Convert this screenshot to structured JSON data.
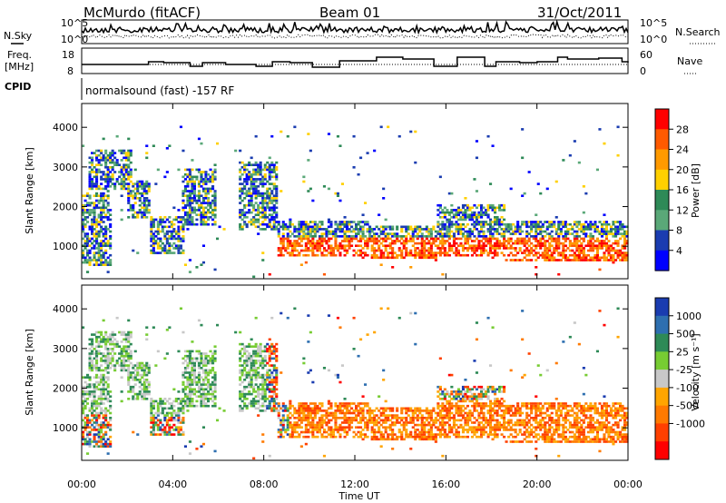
{
  "header": {
    "station": "McMurdo (fitACF)",
    "beam": "Beam 01",
    "date": "31/Oct/2011"
  },
  "aux_panels": {
    "nsky_label": "N.Sky",
    "nsearch_label": "N.Search",
    "noise_ticks_left": [
      "10^5",
      "10^0"
    ],
    "noise_ticks_right": [
      "10^5",
      "10^0"
    ],
    "freq_label_line1": "Freq.",
    "freq_label_line2": "[MHz]",
    "freq_ticks": [
      "18",
      "8"
    ],
    "nave_label": "Nave",
    "nave_ticks": [
      "60",
      "0"
    ],
    "cpid_label": "CPID",
    "cpid_text": "normalsound (fast) -157 RF"
  },
  "colorbars": {
    "power": {
      "label": "Power [dB]",
      "ticks": [
        "28",
        "24",
        "20",
        "16",
        "12",
        "8",
        "4"
      ],
      "colors": [
        "#ff0000",
        "#ff5a00",
        "#ff9a00",
        "#ffd000",
        "#2e8a57",
        "#5aa878",
        "#1a3cb0",
        "#0000ff"
      ]
    },
    "velocity": {
      "label": "Velocity [m s⁻¹]",
      "ticks": [
        "1000",
        "500",
        "25",
        "-25",
        "-100",
        "-500",
        "-1000"
      ],
      "colors": [
        "#1a3cb0",
        "#2e6fb0",
        "#2e8a57",
        "#77cc33",
        "#c8c8c8",
        "#ffa500",
        "#ff7a00",
        "#ff4000",
        "#ff0000"
      ]
    }
  },
  "chart_data": [
    {
      "type": "heatmap",
      "name": "power",
      "ylabel": "Slant Range [km]",
      "xlabel": "Time UT",
      "x_ticks": [
        "00:00",
        "04:00",
        "08:00",
        "12:00",
        "16:00",
        "20:00",
        "00:00"
      ],
      "y_ticks": [
        "1000",
        "2000",
        "3000",
        "4000"
      ],
      "xlim": [
        0,
        24
      ],
      "ylim": [
        180,
        4600
      ],
      "colorbar_range": [
        0,
        32
      ]
    },
    {
      "type": "heatmap",
      "name": "velocity",
      "ylabel": "Slant Range [km]",
      "xlabel": "Time UT",
      "x_ticks": [
        "00:00",
        "04:00",
        "08:00",
        "12:00",
        "16:00",
        "20:00",
        "00:00"
      ],
      "y_ticks": [
        "1000",
        "2000",
        "3000",
        "4000"
      ],
      "xlim": [
        0,
        24
      ],
      "ylim": [
        180,
        4600
      ],
      "colorbar_range": [
        -1000,
        1000
      ]
    }
  ]
}
